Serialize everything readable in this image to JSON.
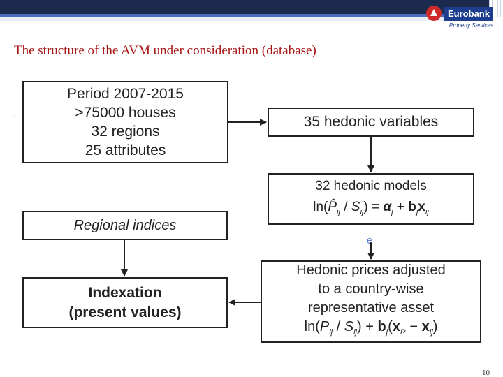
{
  "header": {
    "logo_name": "Eurobank",
    "logo_sub": "Property Services"
  },
  "title": "The structure of the AVM under consideration (database)",
  "boxes": {
    "data": {
      "line1": "Period 2007-2015",
      "line2": ">75000 houses",
      "line3": "32 regions",
      "line4": "25 attributes"
    },
    "hedonic_variables": "35 hedonic variables",
    "hedonic_models": {
      "title": "32 hedonic models"
    },
    "regional_indices": "Regional indices",
    "indexation": {
      "line1": "Indexation",
      "line2": "(present values)"
    },
    "hedonic_prices": {
      "line1": "Hedonic prices adjusted",
      "line2": "to a country-wise",
      "line3": "representative asset"
    }
  },
  "stray_glyph": "e",
  "page_number": "10",
  "colors": {
    "title": "#a81515",
    "header_band": "#1c2a4e",
    "logo_blue": "#1d3e8f",
    "logo_red": "#cf2a2a"
  }
}
